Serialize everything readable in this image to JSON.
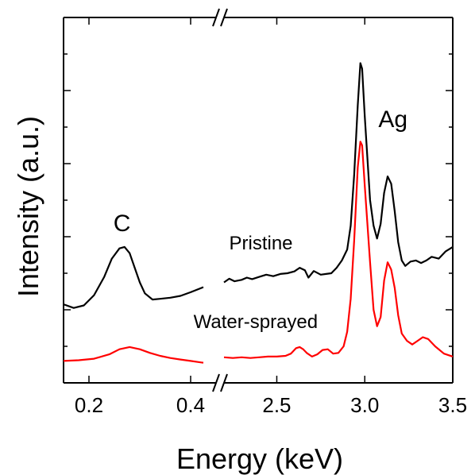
{
  "chart_data": {
    "type": "line",
    "xlabel": "Energy (keV)",
    "ylabel": "Intensity (a.u.)",
    "axis_break": "//",
    "segments": [
      {
        "xlim": [
          0.15,
          0.45
        ],
        "ticks": [
          "0.2",
          "0.4"
        ],
        "tick_values": [
          0.2,
          0.4
        ]
      },
      {
        "xlim": [
          2.2,
          3.5
        ],
        "ticks": [
          "2.5",
          "3.0",
          "3.5"
        ],
        "tick_values": [
          2.5,
          3.0,
          3.5
        ]
      }
    ],
    "ylim": [
      0,
      10
    ],
    "series": [
      {
        "name": "Pristine",
        "color": "#000000",
        "segments": [
          [
            [
              0.15,
              2.15
            ],
            [
              0.17,
              2.05
            ],
            [
              0.19,
              2.12
            ],
            [
              0.21,
              2.4
            ],
            [
              0.23,
              2.9
            ],
            [
              0.245,
              3.4
            ],
            [
              0.26,
              3.68
            ],
            [
              0.27,
              3.72
            ],
            [
              0.28,
              3.55
            ],
            [
              0.29,
              3.15
            ],
            [
              0.3,
              2.75
            ],
            [
              0.31,
              2.45
            ],
            [
              0.325,
              2.28
            ],
            [
              0.34,
              2.3
            ],
            [
              0.36,
              2.33
            ],
            [
              0.38,
              2.38
            ],
            [
              0.4,
              2.48
            ],
            [
              0.425,
              2.62
            ]
          ],
          [
            [
              2.2,
              2.75
            ],
            [
              2.23,
              2.85
            ],
            [
              2.26,
              2.78
            ],
            [
              2.3,
              2.82
            ],
            [
              2.33,
              2.88
            ],
            [
              2.36,
              2.84
            ],
            [
              2.4,
              2.9
            ],
            [
              2.44,
              2.96
            ],
            [
              2.48,
              2.92
            ],
            [
              2.52,
              2.98
            ],
            [
              2.56,
              3.0
            ],
            [
              2.6,
              3.05
            ],
            [
              2.63,
              3.15
            ],
            [
              2.66,
              3.08
            ],
            [
              2.68,
              2.88
            ],
            [
              2.71,
              3.06
            ],
            [
              2.75,
              2.96
            ],
            [
              2.78,
              2.98
            ],
            [
              2.81,
              3.0
            ],
            [
              2.84,
              3.15
            ],
            [
              2.87,
              3.35
            ],
            [
              2.9,
              3.65
            ],
            [
              2.92,
              4.3
            ],
            [
              2.94,
              5.7
            ],
            [
              2.96,
              7.6
            ],
            [
              2.975,
              8.75
            ],
            [
              2.985,
              8.6
            ],
            [
              3.0,
              7.3
            ],
            [
              3.03,
              5.0
            ],
            [
              3.05,
              4.3
            ],
            [
              3.07,
              3.95
            ],
            [
              3.09,
              4.35
            ],
            [
              3.11,
              5.2
            ],
            [
              3.13,
              5.65
            ],
            [
              3.15,
              5.45
            ],
            [
              3.17,
              4.7
            ],
            [
              3.19,
              3.85
            ],
            [
              3.21,
              3.35
            ],
            [
              3.23,
              3.2
            ],
            [
              3.26,
              3.32
            ],
            [
              3.29,
              3.35
            ],
            [
              3.32,
              3.28
            ],
            [
              3.35,
              3.35
            ],
            [
              3.38,
              3.45
            ],
            [
              3.42,
              3.4
            ],
            [
              3.46,
              3.6
            ],
            [
              3.5,
              3.72
            ]
          ]
        ]
      },
      {
        "name": "Water-sprayed",
        "color": "#ff0000",
        "segments": [
          [
            [
              0.15,
              0.6
            ],
            [
              0.18,
              0.62
            ],
            [
              0.21,
              0.66
            ],
            [
              0.24,
              0.78
            ],
            [
              0.26,
              0.92
            ],
            [
              0.28,
              0.98
            ],
            [
              0.3,
              0.92
            ],
            [
              0.32,
              0.82
            ],
            [
              0.34,
              0.74
            ],
            [
              0.36,
              0.68
            ],
            [
              0.38,
              0.64
            ],
            [
              0.4,
              0.6
            ],
            [
              0.425,
              0.55
            ]
          ],
          [
            [
              2.2,
              0.7
            ],
            [
              2.25,
              0.68
            ],
            [
              2.3,
              0.7
            ],
            [
              2.35,
              0.68
            ],
            [
              2.4,
              0.7
            ],
            [
              2.45,
              0.72
            ],
            [
              2.5,
              0.72
            ],
            [
              2.55,
              0.74
            ],
            [
              2.58,
              0.8
            ],
            [
              2.61,
              0.95
            ],
            [
              2.63,
              0.98
            ],
            [
              2.65,
              0.92
            ],
            [
              2.67,
              0.82
            ],
            [
              2.7,
              0.72
            ],
            [
              2.73,
              0.78
            ],
            [
              2.76,
              0.9
            ],
            [
              2.79,
              0.92
            ],
            [
              2.82,
              0.8
            ],
            [
              2.85,
              0.82
            ],
            [
              2.88,
              1.0
            ],
            [
              2.9,
              1.4
            ],
            [
              2.92,
              2.3
            ],
            [
              2.94,
              3.9
            ],
            [
              2.96,
              5.9
            ],
            [
              2.975,
              6.6
            ],
            [
              2.985,
              6.5
            ],
            [
              3.0,
              5.4
            ],
            [
              3.03,
              3.3
            ],
            [
              3.05,
              2.0
            ],
            [
              3.07,
              1.55
            ],
            [
              3.09,
              1.8
            ],
            [
              3.11,
              2.8
            ],
            [
              3.13,
              3.3
            ],
            [
              3.15,
              3.1
            ],
            [
              3.17,
              2.6
            ],
            [
              3.19,
              1.85
            ],
            [
              3.21,
              1.35
            ],
            [
              3.24,
              1.15
            ],
            [
              3.27,
              1.05
            ],
            [
              3.3,
              1.15
            ],
            [
              3.33,
              1.25
            ],
            [
              3.36,
              1.2
            ],
            [
              3.4,
              1.0
            ],
            [
              3.45,
              0.8
            ],
            [
              3.5,
              0.72
            ]
          ]
        ]
      }
    ],
    "annotations": [
      {
        "text": "C",
        "x": 0.265,
        "y": 4.15,
        "axis_segment": 0
      },
      {
        "text": "Pristine",
        "x": 2.41,
        "y": 3.65,
        "axis_segment": 1
      },
      {
        "text": "Water-sprayed",
        "x": 2.38,
        "y": 1.5,
        "axis_segment": 1
      },
      {
        "text": "Ag",
        "x": 3.16,
        "y": 7.0,
        "axis_segment": 1
      }
    ]
  }
}
